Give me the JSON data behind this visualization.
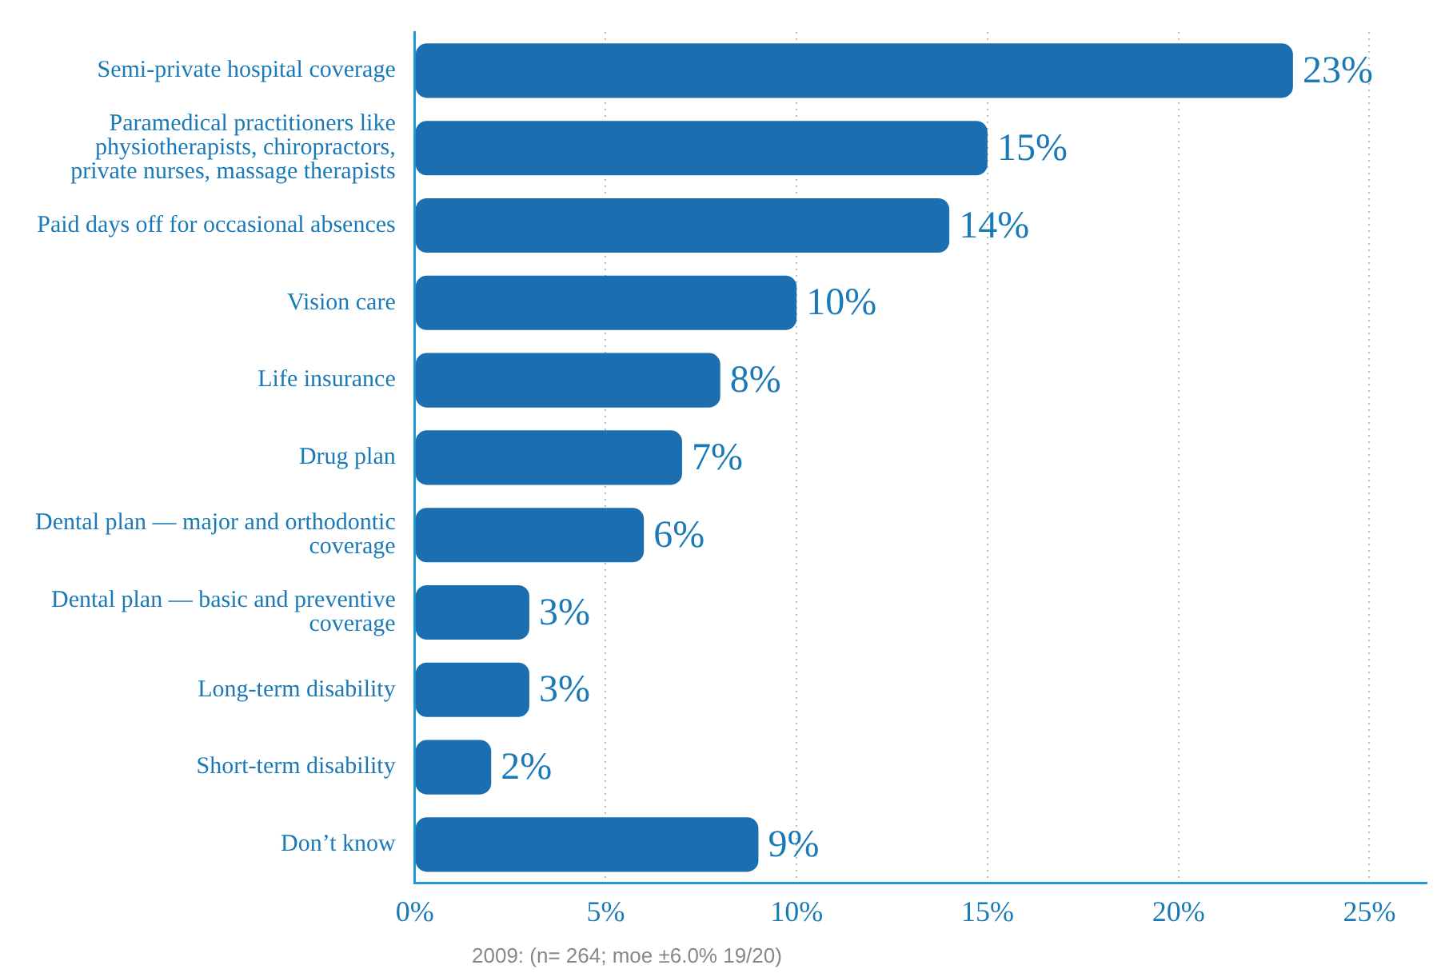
{
  "chart_data": {
    "type": "bar",
    "orientation": "horizontal",
    "categories": [
      "Semi-private hospital coverage",
      "Paramedical practitioners like physiotherapists, chiropractors, private nurses, massage therapists",
      "Paid days off for occasional absences",
      "Vision care",
      "Life insurance",
      "Drug plan",
      "Dental plan — major and orthodontic coverage",
      "Dental plan — basic and preventive coverage",
      "Long-term disability",
      "Short-term disability",
      "Don’t know"
    ],
    "values": [
      23,
      15,
      14,
      10,
      8,
      7,
      6,
      3,
      3,
      2,
      9
    ],
    "value_labels": [
      "23%",
      "15%",
      "14%",
      "10%",
      "8%",
      "7%",
      "6%",
      "3%",
      "3%",
      "2%",
      "9%"
    ],
    "color": "#1b6fb0",
    "xlim": [
      0,
      26.5
    ],
    "xticks": [
      {
        "value": 0,
        "label": "0%"
      },
      {
        "value": 5,
        "label": "5%"
      },
      {
        "value": 10,
        "label": "10%"
      },
      {
        "value": 15,
        "label": "15%"
      },
      {
        "value": 20,
        "label": "20%"
      },
      {
        "value": 25,
        "label": "25%"
      }
    ],
    "grid": "x",
    "legend": false,
    "annotations": [
      "2009: (n= 264; moe ±6.0% 19/20)"
    ]
  }
}
